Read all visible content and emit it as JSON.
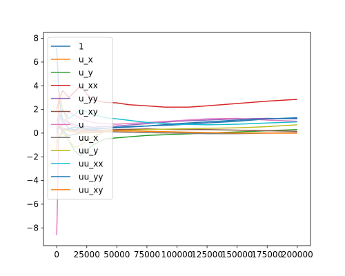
{
  "chart_data": {
    "type": "line",
    "title": "",
    "xlabel": "",
    "ylabel": "",
    "xlim": [
      -11000,
      211000
    ],
    "ylim": [
      -9.5,
      8.5
    ],
    "xticks": [
      0,
      25000,
      50000,
      75000,
      100000,
      125000,
      150000,
      175000,
      200000
    ],
    "xtick_labels": [
      "0",
      "25000",
      "50000",
      "75000",
      "100000",
      "125000",
      "150000",
      "175000",
      "200000"
    ],
    "yticks": [
      -8,
      -6,
      -4,
      -2,
      0,
      2,
      4,
      6,
      8
    ],
    "ytick_labels": [
      "−8",
      "−6",
      "−4",
      "−2",
      "0",
      "2",
      "4",
      "6",
      "8"
    ],
    "grid": false,
    "legend_position": "top-left",
    "series": [
      {
        "name": "1",
        "color": "#1f77b4",
        "x": [
          0,
          2000,
          5000,
          10000,
          15000,
          20000,
          30000,
          40000,
          50000,
          75000,
          100000,
          125000,
          150000,
          175000,
          200000
        ],
        "y": [
          7.2,
          3.0,
          1.0,
          0.4,
          0.3,
          0.35,
          0.3,
          0.4,
          0.5,
          0.6,
          0.7,
          0.85,
          1.0,
          1.2,
          1.3
        ]
      },
      {
        "name": "u_x",
        "color": "#ff7f0e",
        "x": [
          0,
          2000,
          5000,
          10000,
          15000,
          20000,
          30000,
          40000,
          50000,
          75000,
          100000,
          125000,
          150000,
          175000,
          200000
        ],
        "y": [
          -1.5,
          3.5,
          2.0,
          0.8,
          0.5,
          0.3,
          0.2,
          0.15,
          0.1,
          0.05,
          0.0,
          0.0,
          0.0,
          0.0,
          0.0
        ]
      },
      {
        "name": "u_y",
        "color": "#2ca02c",
        "x": [
          0,
          2000,
          5000,
          10000,
          15000,
          20000,
          30000,
          40000,
          50000,
          75000,
          100000,
          125000,
          150000,
          175000,
          200000
        ],
        "y": [
          -0.8,
          -0.5,
          0.4,
          -0.6,
          -1.5,
          -1.9,
          -1.0,
          -0.5,
          -0.4,
          -0.2,
          -0.1,
          0.0,
          0.1,
          0.2,
          0.3
        ]
      },
      {
        "name": "u_xx",
        "color": "#d62728",
        "x": [
          0,
          2000,
          5000,
          10000,
          15000,
          20000,
          25000,
          30000,
          40000,
          50000,
          60000,
          75000,
          90000,
          100000,
          110000,
          125000,
          150000,
          175000,
          200000
        ],
        "y": [
          2.0,
          2.8,
          3.6,
          3.0,
          3.5,
          4.0,
          3.3,
          2.8,
          2.6,
          2.55,
          2.4,
          2.3,
          2.2,
          2.2,
          2.2,
          2.3,
          2.5,
          2.7,
          2.85
        ]
      },
      {
        "name": "u_yy",
        "color": "#9467bd",
        "x": [
          0,
          2000,
          5000,
          10000,
          15000,
          20000,
          30000,
          40000,
          50000,
          75000,
          100000,
          125000,
          150000,
          175000,
          200000
        ],
        "y": [
          1.0,
          1.5,
          1.2,
          0.9,
          0.7,
          0.6,
          0.5,
          0.55,
          0.6,
          0.8,
          1.0,
          1.1,
          1.2,
          1.25,
          1.2
        ]
      },
      {
        "name": "u_xy",
        "color": "#8c564b",
        "x": [
          0,
          2000,
          5000,
          10000,
          15000,
          20000,
          30000,
          40000,
          50000,
          75000,
          100000,
          125000,
          150000,
          175000,
          200000
        ],
        "y": [
          0.5,
          0.8,
          0.4,
          0.3,
          0.2,
          0.15,
          0.2,
          0.25,
          0.3,
          0.35,
          0.3,
          0.3,
          0.25,
          0.2,
          0.15
        ]
      },
      {
        "name": "u",
        "color": "#e377c2",
        "x": [
          0,
          1000,
          2000,
          3000,
          5000,
          10000,
          15000,
          20000,
          30000,
          40000,
          50000,
          75000,
          100000,
          125000,
          150000,
          175000,
          200000
        ],
        "y": [
          -8.6,
          -4.0,
          2.0,
          1.5,
          0.6,
          1.8,
          1.5,
          1.2,
          0.9,
          0.8,
          0.75,
          0.9,
          1.05,
          1.2,
          1.25,
          1.1,
          1.0
        ]
      },
      {
        "name": "uu_x",
        "color": "#7f7f7f",
        "x": [
          0,
          2000,
          5000,
          10000,
          15000,
          20000,
          30000,
          40000,
          50000,
          75000,
          100000,
          125000,
          150000,
          175000,
          200000
        ],
        "y": [
          0.2,
          0.6,
          0.1,
          -0.2,
          -0.1,
          0.0,
          0.05,
          0.1,
          0.1,
          0.05,
          0.0,
          -0.05,
          -0.05,
          0.0,
          0.05
        ]
      },
      {
        "name": "uu_y",
        "color": "#bcbd22",
        "x": [
          0,
          2000,
          5000,
          10000,
          15000,
          20000,
          30000,
          40000,
          50000,
          75000,
          100000,
          125000,
          150000,
          175000,
          200000
        ],
        "y": [
          -1.0,
          -0.3,
          0.0,
          -0.6,
          -1.2,
          -1.0,
          -0.3,
          0.1,
          0.2,
          0.3,
          0.35,
          0.4,
          0.45,
          0.55,
          0.7
        ]
      },
      {
        "name": "uu_xx",
        "color": "#17becf",
        "x": [
          0,
          2000,
          5000,
          10000,
          15000,
          20000,
          30000,
          40000,
          50000,
          75000,
          100000,
          125000,
          150000,
          175000,
          200000
        ],
        "y": [
          0.0,
          1.0,
          2.0,
          1.2,
          1.6,
          2.0,
          1.6,
          1.3,
          1.2,
          0.9,
          0.75,
          0.7,
          0.75,
          0.85,
          0.95
        ]
      },
      {
        "name": "uu_yy",
        "color": "#1f77b4",
        "x": [
          0,
          2000,
          5000,
          10000,
          15000,
          20000,
          30000,
          40000,
          50000,
          75000,
          100000,
          125000,
          150000,
          175000,
          200000
        ],
        "y": [
          0.3,
          0.5,
          0.2,
          0.4,
          0.5,
          0.45,
          0.4,
          0.4,
          0.45,
          0.6,
          0.8,
          0.95,
          1.1,
          1.2,
          1.25
        ]
      },
      {
        "name": "uu_xy",
        "color": "#ff7f0e",
        "x": [
          0,
          2000,
          5000,
          10000,
          15000,
          20000,
          30000,
          40000,
          50000,
          75000,
          100000,
          125000,
          150000,
          175000,
          200000
        ],
        "y": [
          0.4,
          0.8,
          0.3,
          0.2,
          0.1,
          0.0,
          0.1,
          0.2,
          0.2,
          0.15,
          0.1,
          0.05,
          0.0,
          0.0,
          0.0
        ]
      }
    ]
  }
}
